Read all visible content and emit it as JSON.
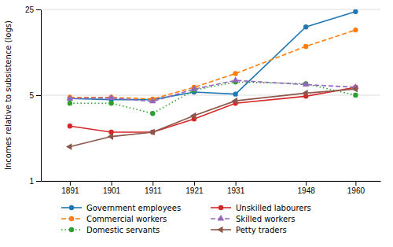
{
  "chart_data": {
    "type": "line",
    "ylabel": "Incomes relative to subsistence (logs)",
    "x": [
      1891,
      1901,
      1911,
      1921,
      1931,
      1948,
      1960
    ],
    "series": [
      {
        "name": "Government employees",
        "values": [
          4.7,
          4.6,
          4.6,
          5.3,
          5.1,
          18.0,
          24.0
        ],
        "line_style": "solid",
        "marker": "circle"
      },
      {
        "name": "Commercial workers",
        "values": [
          4.8,
          4.8,
          4.65,
          5.8,
          7.5,
          12.5,
          17.0
        ],
        "line_style": "dashed",
        "marker": "circle"
      },
      {
        "name": "Domestic servants",
        "values": [
          4.3,
          4.3,
          3.55,
          5.5,
          6.4,
          6.2,
          5.0
        ],
        "line_style": "dotted",
        "marker": "circle"
      },
      {
        "name": "Unskilled labourers",
        "values": [
          2.8,
          2.5,
          2.5,
          3.2,
          4.3,
          4.9,
          5.8
        ],
        "line_style": "solid",
        "marker": "circle"
      },
      {
        "name": "Skilled workers",
        "values": [
          4.7,
          4.75,
          4.45,
          5.6,
          6.6,
          6.1,
          5.8
        ],
        "line_style": "dashed",
        "marker": "triangle-up"
      },
      {
        "name": "Petty traders",
        "values": [
          1.9,
          2.3,
          2.5,
          3.4,
          4.5,
          5.2,
          5.6
        ],
        "line_style": "solid",
        "marker": "triangle-left"
      }
    ],
    "log": "y",
    "ylim": [
      1.0,
      25.0
    ],
    "yticks": [
      1,
      5,
      25
    ],
    "xlim": [
      1884,
      1966
    ],
    "xticks": [
      1891,
      1901,
      1911,
      1921,
      1931,
      1948,
      1960
    ],
    "grid": "y",
    "legend": "bottom"
  }
}
